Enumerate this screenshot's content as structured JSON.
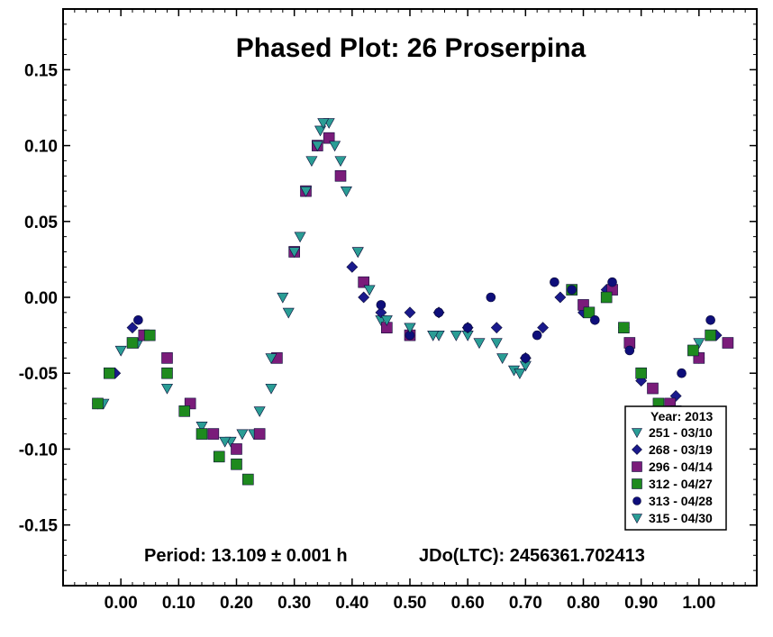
{
  "chart_data": {
    "type": "scatter",
    "title": "Phased Plot: 26 Proserpina",
    "xlabel": "",
    "ylabel": "",
    "xlim": [
      -0.1,
      1.1
    ],
    "ylim": [
      0.19,
      -0.19
    ],
    "y_inverted": true,
    "x_ticks": [
      "0.00",
      "0.10",
      "0.20",
      "0.30",
      "0.40",
      "0.50",
      "0.60",
      "0.70",
      "0.80",
      "0.90",
      "1.00"
    ],
    "x_tick_values": [
      0,
      0.1,
      0.2,
      0.3,
      0.4,
      0.5,
      0.6,
      0.7,
      0.8,
      0.9,
      1.0
    ],
    "y_ticks": [
      "-0.15",
      "-0.10",
      "-0.05",
      "0.00",
      "0.05",
      "0.10",
      "0.15"
    ],
    "y_tick_values": [
      -0.15,
      -0.1,
      -0.05,
      0.0,
      0.05,
      0.1,
      0.15
    ],
    "grid": false,
    "legend_placement": "bottom-right",
    "legend_title": "Year: 2013",
    "annotations": {
      "period": "Period: 13.109 ± 0.001 h",
      "epoch": "JDo(LTC): 2456361.702413"
    },
    "series": [
      {
        "name": "251 - 03/10",
        "marker": "triangle-down",
        "color": "#2a9d95",
        "x": [
          -0.03,
          0.0,
          0.03,
          0.08,
          0.14,
          0.19,
          0.23,
          0.26,
          0.29,
          0.31,
          0.33,
          0.345,
          0.36,
          0.38,
          0.41,
          0.45,
          0.5,
          0.55,
          0.6,
          0.65,
          0.68,
          0.7,
          1.0
        ],
        "y": [
          -0.07,
          -0.035,
          -0.03,
          -0.06,
          -0.085,
          -0.095,
          -0.09,
          -0.06,
          -0.01,
          0.04,
          0.09,
          0.11,
          0.115,
          0.09,
          0.03,
          -0.015,
          -0.02,
          -0.025,
          -0.025,
          -0.03,
          -0.048,
          -0.045,
          -0.03
        ]
      },
      {
        "name": "268 - 03/19",
        "marker": "diamond",
        "color": "#1a1a8c",
        "x": [
          -0.04,
          -0.01,
          0.02,
          0.4,
          0.42,
          0.45,
          0.5,
          0.55,
          0.6,
          0.65,
          0.7,
          0.73,
          0.76,
          0.8,
          0.84,
          0.87,
          0.9,
          0.93,
          0.96,
          1.0,
          1.03
        ],
        "y": [
          -0.07,
          -0.05,
          -0.02,
          0.02,
          0.0,
          -0.01,
          -0.01,
          -0.01,
          -0.02,
          -0.02,
          -0.04,
          -0.02,
          0.0,
          -0.01,
          0.005,
          -0.02,
          -0.055,
          -0.08,
          -0.065,
          -0.04,
          -0.025
        ]
      },
      {
        "name": "296 - 04/14",
        "marker": "square",
        "color": "#7a1c7a",
        "x": [
          0.04,
          0.08,
          0.12,
          0.16,
          0.2,
          0.24,
          0.27,
          0.3,
          0.32,
          0.34,
          0.36,
          0.38,
          0.42,
          0.46,
          0.5,
          0.8,
          0.85,
          0.88,
          0.92,
          0.95,
          1.0,
          1.05
        ],
        "y": [
          -0.025,
          -0.04,
          -0.07,
          -0.09,
          -0.1,
          -0.09,
          -0.04,
          0.03,
          0.07,
          0.1,
          0.105,
          0.08,
          0.01,
          -0.02,
          -0.025,
          -0.005,
          0.005,
          -0.03,
          -0.06,
          -0.07,
          -0.04,
          -0.03
        ]
      },
      {
        "name": "312 - 04/27",
        "marker": "square",
        "color": "#1e8a1e",
        "x": [
          -0.04,
          -0.02,
          0.02,
          0.05,
          0.08,
          0.11,
          0.14,
          0.17,
          0.2,
          0.22,
          0.78,
          0.81,
          0.84,
          0.87,
          0.9,
          0.93,
          0.96,
          0.99,
          1.02
        ],
        "y": [
          -0.07,
          -0.05,
          -0.03,
          -0.025,
          -0.05,
          -0.075,
          -0.09,
          -0.105,
          -0.11,
          -0.12,
          0.005,
          -0.01,
          0.0,
          -0.02,
          -0.05,
          -0.07,
          -0.075,
          -0.035,
          -0.025
        ]
      },
      {
        "name": "313 - 04/28",
        "marker": "circle",
        "color": "#0e0e7a",
        "x": [
          0.03,
          0.45,
          0.5,
          0.55,
          0.6,
          0.64,
          0.7,
          0.72,
          0.75,
          0.78,
          0.82,
          0.85,
          0.88,
          0.93,
          0.97,
          1.02
        ],
        "y": [
          -0.015,
          -0.005,
          -0.025,
          -0.01,
          -0.02,
          0.0,
          -0.04,
          -0.025,
          0.01,
          0.005,
          -0.015,
          0.01,
          -0.035,
          -0.075,
          -0.05,
          -0.015
        ]
      },
      {
        "name": "315 - 04/30",
        "marker": "triangle-down",
        "color": "#2a9d95",
        "x": [
          0.18,
          0.21,
          0.24,
          0.26,
          0.28,
          0.3,
          0.32,
          0.34,
          0.35,
          0.37,
          0.39,
          0.41,
          0.43,
          0.46,
          0.5,
          0.54,
          0.58,
          0.62,
          0.66,
          0.69
        ],
        "y": [
          -0.095,
          -0.09,
          -0.075,
          -0.04,
          0.0,
          0.03,
          0.07,
          0.1,
          0.115,
          0.1,
          0.07,
          0.03,
          0.005,
          -0.015,
          -0.02,
          -0.025,
          -0.025,
          -0.03,
          -0.04,
          -0.05
        ]
      }
    ]
  }
}
